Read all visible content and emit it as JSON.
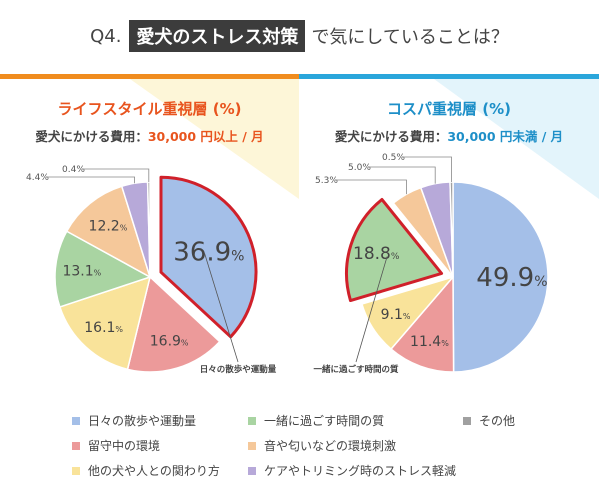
{
  "header": {
    "q_label": "Q4.",
    "highlight": "愛犬のストレス対策",
    "rest": "で気にしていることは？"
  },
  "colors": {
    "left_accent": "#f08c1e",
    "left_title": "#e8541e",
    "right_accent": "#2aa6db",
    "right_title": "#1e8fc8",
    "highlight_border": "#d0202a"
  },
  "chart_data": [
    {
      "type": "pie",
      "title": "ライフスタイル重視層 (%)",
      "subtitle_prefix": "愛犬にかける費用：",
      "subtitle_value": "30,000 円以上 / 月",
      "categories": [
        "日々の散歩や運動量",
        "留守中の環境",
        "他の犬や人との関わり方",
        "一緒に過ごす時間の質",
        "音や匂いなどの環境刺激",
        "ケアやトリミング時のストレス軽減",
        "その他"
      ],
      "values": [
        36.9,
        16.9,
        16.1,
        13.1,
        12.2,
        4.4,
        0.4
      ],
      "exploded": "日々の散歩や運動量",
      "callout": "日々の散歩や運動量"
    },
    {
      "type": "pie",
      "title": "コスパ重視層 (%)",
      "subtitle_prefix": "愛犬にかける費用：",
      "subtitle_value": "30,000 円未満 / 月",
      "categories": [
        "日々の散歩や運動量",
        "留守中の環境",
        "他の犬や人との関わり方",
        "一緒に過ごす時間の質",
        "音や匂いなどの環境刺激",
        "ケアやトリミング時のストレス軽減",
        "その他"
      ],
      "values": [
        49.9,
        11.4,
        9.1,
        18.8,
        5.3,
        5.0,
        0.5
      ],
      "exploded": "一緒に過ごす時間の質",
      "callout": "一緒に過ごす時間の質"
    }
  ],
  "unit": "%",
  "legend": {
    "items": [
      {
        "label": "日々の散歩や運動量",
        "color": "#a4bfe8"
      },
      {
        "label": "一緒に過ごす時間の質",
        "color": "#a9d4a2"
      },
      {
        "label": "その他",
        "color": "#a0a0a0"
      },
      {
        "label": "留守中の環境",
        "color": "#ec9a9a"
      },
      {
        "label": "音や匂いなどの環境刺激",
        "color": "#f5c89a"
      },
      {
        "label": "他の犬や人との関わり方",
        "color": "#f9e39a"
      },
      {
        "label": "ケアやトリミング時のストレス軽減",
        "color": "#b7a9d9"
      }
    ]
  },
  "slice_colors": {
    "日々の散歩や運動量": "#a4bfe8",
    "留守中の環境": "#ec9a9a",
    "他の犬や人との関わり方": "#f9e39a",
    "一緒に過ごす時間の質": "#a9d4a2",
    "音や匂いなどの環境刺激": "#f5c89a",
    "ケアやトリミング時のストレス軽減": "#b7a9d9",
    "その他": "#a0a0a0"
  }
}
